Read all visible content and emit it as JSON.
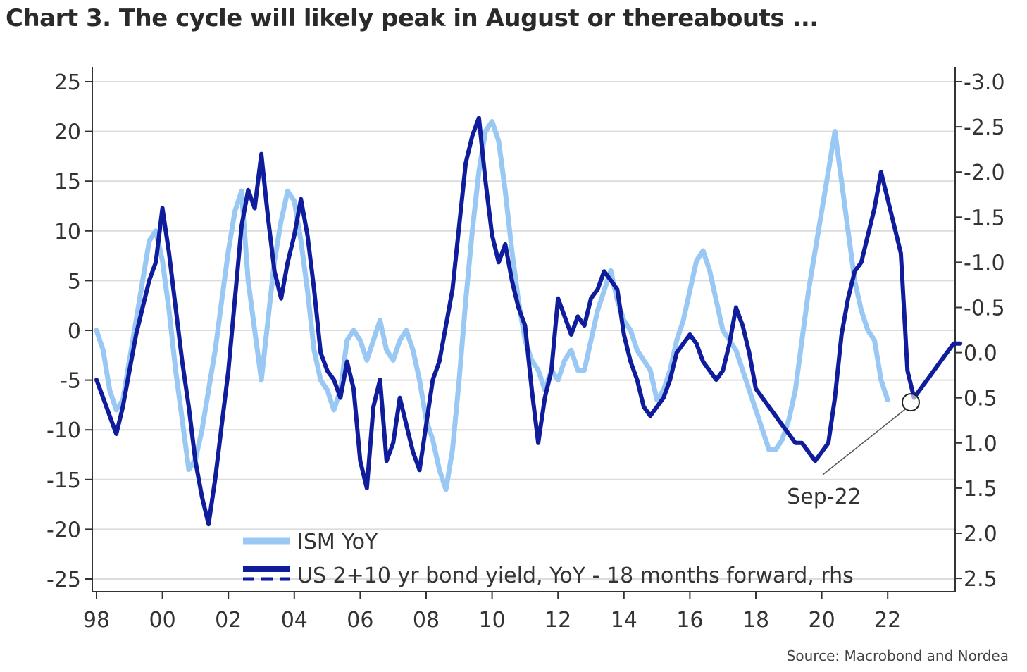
{
  "title": "Chart 3. The cycle will likely peak in August or thereabouts ...",
  "source": "Source: Macrobond and Nordea",
  "chart_data": {
    "type": "line",
    "colors": {
      "ism": "#99c8f4",
      "yield": "#0f1c9c",
      "grid": "#dcdcdc",
      "axis": "#333333"
    },
    "x_tick_labels": [
      "98",
      "00",
      "02",
      "04",
      "06",
      "08",
      "10",
      "12",
      "14",
      "16",
      "18",
      "20",
      "22"
    ],
    "x_tick_years": [
      1998,
      2000,
      2002,
      2004,
      2006,
      2008,
      2010,
      2012,
      2014,
      2016,
      2018,
      2020,
      2022
    ],
    "xlim": [
      1998,
      2024.4
    ],
    "y_left": {
      "ticks": [
        25,
        20,
        15,
        10,
        5,
        0,
        -5,
        -10,
        -15,
        -20,
        -25
      ],
      "labels": [
        "25",
        "20",
        "15",
        "10",
        "5",
        "0",
        "-5",
        "-10",
        "-15",
        "-20",
        "-25"
      ],
      "ylim": [
        -25,
        25
      ]
    },
    "y_right": {
      "ticks": [
        -3.0,
        -2.5,
        -2.0,
        -1.5,
        -1.0,
        -0.5,
        0.0,
        0.5,
        1.0,
        1.5,
        2.0,
        2.5
      ],
      "labels": [
        "-3.0",
        "-2.5",
        "-2.0",
        "-1.5",
        "-1.0",
        "-0.5",
        "0.0",
        "0.5",
        "1.0",
        "1.5",
        "2.0",
        "2.5"
      ],
      "inverted": true,
      "note": "rhs"
    },
    "grid": "horizontal",
    "legend_placement": "bottom-center",
    "series": [
      {
        "name": "ISM YoY",
        "axis": "left",
        "color": "#99c8f4",
        "x": [
          1998.0,
          1998.2,
          1998.4,
          1998.6,
          1998.8,
          1999.0,
          1999.2,
          1999.4,
          1999.6,
          1999.8,
          2000.0,
          2000.2,
          2000.4,
          2000.6,
          2000.8,
          2001.0,
          2001.2,
          2001.4,
          2001.6,
          2001.8,
          2002.0,
          2002.2,
          2002.4,
          2002.6,
          2002.8,
          2003.0,
          2003.2,
          2003.4,
          2003.6,
          2003.8,
          2004.0,
          2004.2,
          2004.4,
          2004.6,
          2004.8,
          2005.0,
          2005.2,
          2005.4,
          2005.6,
          2005.8,
          2006.0,
          2006.2,
          2006.4,
          2006.6,
          2006.8,
          2007.0,
          2007.2,
          2007.4,
          2007.6,
          2007.8,
          2008.0,
          2008.2,
          2008.4,
          2008.6,
          2008.8,
          2009.0,
          2009.2,
          2009.4,
          2009.6,
          2009.8,
          2010.0,
          2010.2,
          2010.4,
          2010.6,
          2010.8,
          2011.0,
          2011.2,
          2011.4,
          2011.6,
          2011.8,
          2012.0,
          2012.2,
          2012.4,
          2012.6,
          2012.8,
          2013.0,
          2013.2,
          2013.4,
          2013.6,
          2013.8,
          2014.0,
          2014.2,
          2014.4,
          2014.6,
          2014.8,
          2015.0,
          2015.2,
          2015.4,
          2015.6,
          2015.8,
          2016.0,
          2016.2,
          2016.4,
          2016.6,
          2016.8,
          2017.0,
          2017.2,
          2017.4,
          2017.6,
          2017.8,
          2018.0,
          2018.2,
          2018.4,
          2018.6,
          2018.8,
          2019.0,
          2019.2,
          2019.4,
          2019.6,
          2019.8,
          2020.0,
          2020.2,
          2020.4,
          2020.6,
          2020.8,
          2021.0,
          2021.2,
          2021.4,
          2021.6,
          2021.8,
          2022.0
        ],
        "values": [
          0,
          -2,
          -6,
          -8,
          -7,
          -3,
          1,
          5,
          9,
          10,
          7,
          2,
          -4,
          -9,
          -14,
          -13,
          -10,
          -6,
          -2,
          3,
          8,
          12,
          14,
          5,
          0,
          -5,
          1,
          7,
          11,
          14,
          13,
          9,
          4,
          -2,
          -5,
          -6,
          -8,
          -6,
          -1,
          0,
          -1,
          -3,
          -1,
          1,
          -2,
          -3,
          -1,
          0,
          -2,
          -5,
          -9,
          -11,
          -14,
          -16,
          -12,
          -5,
          3,
          10,
          16,
          20,
          21,
          19,
          14,
          8,
          3,
          -1,
          -3,
          -4,
          -6,
          -4,
          -5,
          -3,
          -2,
          -4,
          -4,
          -1,
          2,
          4,
          6,
          3,
          1,
          0,
          -2,
          -3,
          -4,
          -7,
          -6,
          -4,
          -1,
          1,
          4,
          7,
          8,
          6,
          3,
          0,
          -1,
          -2,
          -4,
          -6,
          -8,
          -10,
          -12,
          -12,
          -11,
          -9,
          -6,
          -1,
          4,
          8,
          12,
          16,
          20,
          15,
          10,
          5,
          2,
          0,
          -1,
          -5,
          -7
        ]
      },
      {
        "name": "US 2+10 yr bond yield, YoY - 18 months forward, rhs",
        "axis": "right",
        "color": "#0f1c9c",
        "x": [
          1998.0,
          1998.2,
          1998.4,
          1998.6,
          1998.8,
          1999.0,
          1999.2,
          1999.4,
          1999.6,
          1999.8,
          2000.0,
          2000.2,
          2000.4,
          2000.6,
          2000.8,
          2001.0,
          2001.2,
          2001.4,
          2001.6,
          2001.8,
          2002.0,
          2002.2,
          2002.4,
          2002.6,
          2002.8,
          2003.0,
          2003.2,
          2003.4,
          2003.6,
          2003.8,
          2004.0,
          2004.2,
          2004.4,
          2004.6,
          2004.8,
          2005.0,
          2005.2,
          2005.4,
          2005.6,
          2005.8,
          2006.0,
          2006.2,
          2006.4,
          2006.6,
          2006.8,
          2007.0,
          2007.2,
          2007.4,
          2007.6,
          2007.8,
          2008.0,
          2008.2,
          2008.4,
          2008.6,
          2008.8,
          2009.0,
          2009.2,
          2009.4,
          2009.6,
          2009.8,
          2010.0,
          2010.2,
          2010.4,
          2010.6,
          2010.8,
          2011.0,
          2011.2,
          2011.4,
          2011.6,
          2011.8,
          2012.0,
          2012.2,
          2012.4,
          2012.6,
          2012.8,
          2013.0,
          2013.2,
          2013.4,
          2013.6,
          2013.8,
          2014.0,
          2014.2,
          2014.4,
          2014.6,
          2014.8,
          2015.0,
          2015.2,
          2015.4,
          2015.6,
          2015.8,
          2016.0,
          2016.2,
          2016.4,
          2016.6,
          2016.8,
          2017.0,
          2017.2,
          2017.4,
          2017.6,
          2017.8,
          2018.0,
          2018.2,
          2018.4,
          2018.6,
          2018.8,
          2019.0,
          2019.2,
          2019.4,
          2019.6,
          2019.8,
          2020.0,
          2020.2,
          2020.4,
          2020.6,
          2020.8,
          2021.0,
          2021.2,
          2021.4,
          2021.6,
          2021.8,
          2022.0,
          2022.2,
          2022.4,
          2022.6,
          2022.8,
          2023.0,
          2023.2,
          2023.4,
          2023.6,
          2023.8,
          2024.0,
          2024.2
        ],
        "values": [
          0.3,
          0.5,
          0.7,
          0.9,
          0.6,
          0.2,
          -0.2,
          -0.5,
          -0.8,
          -1.0,
          -1.6,
          -1.1,
          -0.5,
          0.1,
          0.6,
          1.2,
          1.6,
          1.9,
          1.4,
          0.8,
          0.2,
          -0.6,
          -1.4,
          -1.8,
          -1.6,
          -2.2,
          -1.5,
          -0.9,
          -0.6,
          -1.0,
          -1.3,
          -1.7,
          -1.3,
          -0.7,
          0.0,
          0.2,
          0.3,
          0.5,
          0.1,
          0.4,
          1.2,
          1.5,
          0.6,
          0.3,
          1.2,
          1.0,
          0.5,
          0.8,
          1.1,
          1.3,
          0.8,
          0.3,
          0.1,
          -0.3,
          -0.7,
          -1.4,
          -2.1,
          -2.4,
          -2.6,
          -1.9,
          -1.3,
          -1.0,
          -1.2,
          -0.8,
          -0.5,
          -0.3,
          0.4,
          1.0,
          0.5,
          0.2,
          -0.6,
          -0.4,
          -0.2,
          -0.4,
          -0.3,
          -0.6,
          -0.7,
          -0.9,
          -0.8,
          -0.7,
          -0.2,
          0.1,
          0.3,
          0.6,
          0.7,
          0.6,
          0.5,
          0.3,
          0.0,
          -0.1,
          -0.2,
          -0.1,
          0.1,
          0.2,
          0.3,
          0.2,
          -0.1,
          -0.5,
          -0.3,
          0.0,
          0.4,
          0.5,
          0.6,
          0.7,
          0.8,
          0.9,
          1.0,
          1.0,
          1.1,
          1.2,
          1.1,
          1.0,
          0.5,
          -0.2,
          -0.6,
          -0.9,
          -1.0,
          -1.3,
          -1.6,
          -2.0,
          -1.7,
          -1.4,
          -1.1,
          0.2,
          0.5,
          0.4,
          0.3,
          0.2,
          0.1,
          0.0,
          -0.1,
          -0.1
        ]
      }
    ],
    "annotations": [
      {
        "text": "Sep-22",
        "x": 2022.7,
        "y_right": 0.55
      }
    ]
  }
}
